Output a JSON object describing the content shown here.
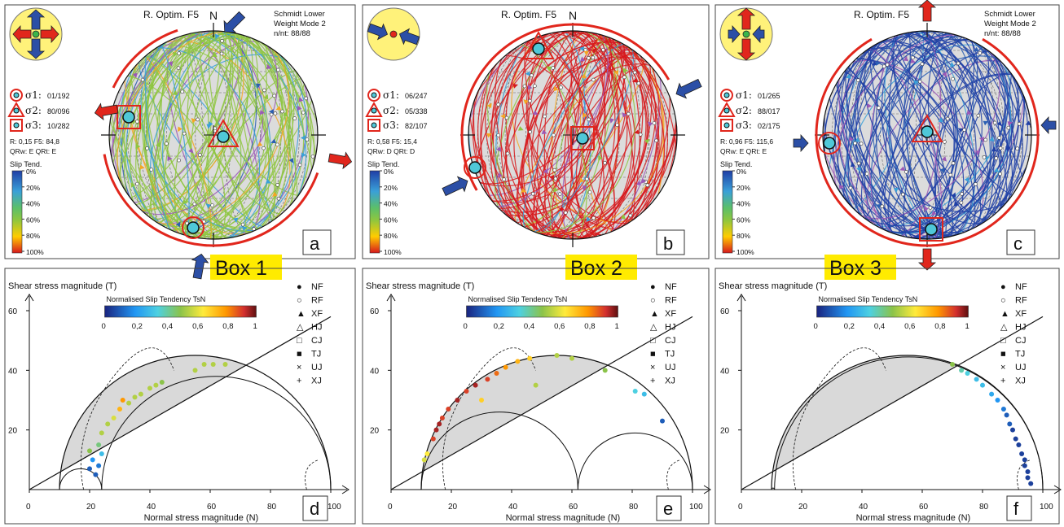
{
  "stereonets": [
    {
      "method": "R. Optim. F5",
      "projection_line1": "Schmidt Lower",
      "projection_line2": "Weight Mode 2",
      "count": "n/nt: 88/88",
      "north": "N",
      "sigma1_label": "σ1:",
      "sigma1_value": "01/192",
      "sigma2_label": "σ2:",
      "sigma2_value": "80/096",
      "sigma3_label": "σ3:",
      "sigma3_value": "10/282",
      "ratio_line": "R: 0,15   F5: 84,8",
      "quality_line": "QRw: E   QRt: E",
      "legend_title": "Slip Tend.",
      "legend_ticks": [
        "0%",
        "20%",
        "40%",
        "60%",
        "80%",
        "100%"
      ],
      "panel_letter": "a",
      "box_label": "Box 1",
      "regime": "strike-slip",
      "dominant_color": "#8ec63f",
      "point_colors": [
        "#8ec63f",
        "#2b5fb3",
        "#f5a623",
        "#9b59b6",
        "#3aa0d8"
      ]
    },
    {
      "method": "R. Optim. F5",
      "projection_line1": "",
      "projection_line2": "",
      "count": "",
      "north": "N",
      "sigma1_label": "σ1:",
      "sigma1_value": "06/247",
      "sigma2_label": "σ2:",
      "sigma2_value": "05/338",
      "sigma3_label": "σ3:",
      "sigma3_value": "82/107",
      "ratio_line": "R: 0,58   F5: 15,4",
      "quality_line": "QRw: D   QRt: D",
      "legend_title": "Slip Tend.",
      "legend_ticks": [
        "0%",
        "20%",
        "40%",
        "60%",
        "80%",
        "100%"
      ],
      "panel_letter": "b",
      "box_label": "Box 2",
      "regime": "compression",
      "dominant_color": "#d7191c",
      "point_colors": [
        "#d7191c",
        "#f5a623",
        "#8ec63f",
        "#9b59b6",
        "#3aa0d8"
      ]
    },
    {
      "method": "R. Optim. F5",
      "projection_line1": "Schmidt Lower",
      "projection_line2": "Weight Mode 2",
      "count": "n/nt: 88/88",
      "north": "",
      "sigma1_label": "σ1:",
      "sigma1_value": "01/265",
      "sigma2_label": "σ2:",
      "sigma2_value": "88/017",
      "sigma3_label": "σ3:",
      "sigma3_value": "02/175",
      "ratio_line": "R: 0,96   F5: 115,6",
      "quality_line": "QRw: E   QRt: E",
      "legend_title": "Slip Tend.",
      "legend_ticks": [
        "0%",
        "20%",
        "40%",
        "60%",
        "80%",
        "100%"
      ],
      "panel_letter": "c",
      "box_label": "Box 3",
      "regime": "extension",
      "dominant_color": "#1f3fa6",
      "point_colors": [
        "#2b5fb3",
        "#1f3fa6",
        "#3aa0d8",
        "#9b59b6"
      ]
    }
  ],
  "mohr_panels": [
    {
      "panel_letter": "d",
      "y_axis_title": "Shear stress magnitude (T)",
      "x_axis_title": "Normal stress magnitude (N)",
      "y_ticks": [
        "20",
        "40",
        "60"
      ],
      "x_ticks": [
        "0",
        "20",
        "40",
        "60",
        "80",
        "100"
      ],
      "colorbar_title": "Normalised Slip Tendency TsN",
      "colorbar_ticks": [
        "0",
        "0,2",
        "0,4",
        "0,6",
        "0,8",
        "1"
      ]
    },
    {
      "panel_letter": "e",
      "y_axis_title": "Shear stress magnitude (T)",
      "x_axis_title": "Normal stress magnitude (N)",
      "y_ticks": [
        "20",
        "40",
        "60"
      ],
      "x_ticks": [
        "0",
        "20",
        "40",
        "60",
        "80",
        "100"
      ],
      "colorbar_title": "Normalised Slip Tendency TsN",
      "colorbar_ticks": [
        "0",
        "0,2",
        "0,4",
        "0,6",
        "0,8",
        "1"
      ]
    },
    {
      "panel_letter": "f",
      "y_axis_title": "Shear stress magnitude (T)",
      "x_axis_title": "Normal stress magnitude (N)",
      "y_ticks": [
        "20",
        "40",
        "60"
      ],
      "x_ticks": [
        "0",
        "20",
        "40",
        "60",
        "80",
        "100"
      ],
      "colorbar_title": "Normalised Slip Tendency TsN",
      "colorbar_ticks": [
        "0",
        "0,2",
        "0,4",
        "0,6",
        "0,8",
        "1"
      ]
    }
  ],
  "symbol_legend": [
    {
      "symbol": "●",
      "label": "NF"
    },
    {
      "symbol": "○",
      "label": "RF"
    },
    {
      "symbol": "▲",
      "label": "XF"
    },
    {
      "symbol": "△",
      "label": "HJ"
    },
    {
      "symbol": "□",
      "label": "CJ"
    },
    {
      "symbol": "■",
      "label": "TJ"
    },
    {
      "symbol": "×",
      "label": "UJ"
    },
    {
      "symbol": "+",
      "label": "XJ"
    }
  ],
  "chart_data": [
    {
      "type": "scatter",
      "title": "",
      "xlabel": "Normal stress magnitude (N)",
      "ylabel": "Shear stress magnitude (T)",
      "xlim": [
        0,
        100
      ],
      "ylim": [
        0,
        60
      ],
      "circles": [
        [
          10,
          100
        ],
        [
          10,
          24
        ],
        [
          24,
          100
        ]
      ],
      "line": {
        "x": [
          0,
          100
        ],
        "y": [
          0,
          58
        ]
      },
      "points": [
        {
          "x": 22,
          "y": 5,
          "t": 0.1
        },
        {
          "x": 20,
          "y": 7,
          "t": 0.1
        },
        {
          "x": 23,
          "y": 8,
          "t": 0.15
        },
        {
          "x": 21,
          "y": 10,
          "t": 0.2
        },
        {
          "x": 24,
          "y": 12,
          "t": 0.3
        },
        {
          "x": 20,
          "y": 13,
          "t": 0.5
        },
        {
          "x": 23,
          "y": 15,
          "t": 0.45
        },
        {
          "x": 24,
          "y": 19,
          "t": 0.55
        },
        {
          "x": 26,
          "y": 22,
          "t": 0.55
        },
        {
          "x": 28,
          "y": 24,
          "t": 0.6
        },
        {
          "x": 30,
          "y": 27,
          "t": 0.75
        },
        {
          "x": 31,
          "y": 30,
          "t": 0.8
        },
        {
          "x": 33,
          "y": 29,
          "t": 0.55
        },
        {
          "x": 35,
          "y": 31,
          "t": 0.55
        },
        {
          "x": 37,
          "y": 32,
          "t": 0.55
        },
        {
          "x": 40,
          "y": 34,
          "t": 0.55
        },
        {
          "x": 42,
          "y": 35,
          "t": 0.55
        },
        {
          "x": 44,
          "y": 36,
          "t": 0.5
        },
        {
          "x": 55,
          "y": 40,
          "t": 0.55
        },
        {
          "x": 58,
          "y": 42,
          "t": 0.55
        },
        {
          "x": 61,
          "y": 42,
          "t": 0.55
        },
        {
          "x": 65,
          "y": 42,
          "t": 0.55
        }
      ]
    },
    {
      "type": "scatter",
      "title": "",
      "xlabel": "Normal stress magnitude (N)",
      "ylabel": "Shear stress magnitude (T)",
      "xlim": [
        0,
        100
      ],
      "ylim": [
        0,
        60
      ],
      "circles": [
        [
          10,
          100
        ],
        [
          10,
          62
        ],
        [
          62,
          100
        ]
      ],
      "line": {
        "x": [
          0,
          100
        ],
        "y": [
          0,
          58
        ]
      },
      "points": [
        {
          "x": 11,
          "y": 10,
          "t": 0.6
        },
        {
          "x": 12,
          "y": 12,
          "t": 0.65
        },
        {
          "x": 14,
          "y": 17,
          "t": 0.9
        },
        {
          "x": 15,
          "y": 20,
          "t": 0.95
        },
        {
          "x": 16,
          "y": 22,
          "t": 0.95
        },
        {
          "x": 17,
          "y": 24,
          "t": 0.9
        },
        {
          "x": 19,
          "y": 27,
          "t": 0.9
        },
        {
          "x": 22,
          "y": 30,
          "t": 0.95
        },
        {
          "x": 25,
          "y": 33,
          "t": 0.9
        },
        {
          "x": 28,
          "y": 35,
          "t": 0.95
        },
        {
          "x": 30,
          "y": 30,
          "t": 0.7
        },
        {
          "x": 32,
          "y": 37,
          "t": 0.9
        },
        {
          "x": 35,
          "y": 39,
          "t": 0.85
        },
        {
          "x": 38,
          "y": 41,
          "t": 0.8
        },
        {
          "x": 42,
          "y": 43,
          "t": 0.75
        },
        {
          "x": 46,
          "y": 44,
          "t": 0.7
        },
        {
          "x": 48,
          "y": 35,
          "t": 0.55
        },
        {
          "x": 55,
          "y": 45,
          "t": 0.55
        },
        {
          "x": 60,
          "y": 44,
          "t": 0.55
        },
        {
          "x": 71,
          "y": 40,
          "t": 0.5
        },
        {
          "x": 81,
          "y": 33,
          "t": 0.35
        },
        {
          "x": 84,
          "y": 32,
          "t": 0.3
        },
        {
          "x": 90,
          "y": 23,
          "t": 0.1
        }
      ]
    },
    {
      "type": "scatter",
      "title": "",
      "xlabel": "Normal stress magnitude (N)",
      "ylabel": "Shear stress magnitude (T)",
      "xlim": [
        0,
        100
      ],
      "ylim": [
        0,
        60
      ],
      "circles": [
        [
          10,
          100
        ],
        [
          10,
          11
        ],
        [
          11,
          100
        ]
      ],
      "line": {
        "x": [
          0,
          100
        ],
        "y": [
          0,
          58
        ]
      },
      "points": [
        {
          "x": 70,
          "y": 42,
          "t": 0.5
        },
        {
          "x": 73,
          "y": 40,
          "t": 0.4
        },
        {
          "x": 75,
          "y": 39,
          "t": 0.35
        },
        {
          "x": 78,
          "y": 37,
          "t": 0.3
        },
        {
          "x": 80,
          "y": 35,
          "t": 0.3
        },
        {
          "x": 83,
          "y": 32,
          "t": 0.25
        },
        {
          "x": 85,
          "y": 30,
          "t": 0.2
        },
        {
          "x": 87,
          "y": 27,
          "t": 0.15
        },
        {
          "x": 88,
          "y": 25,
          "t": 0.1
        },
        {
          "x": 89,
          "y": 22,
          "t": 0.1
        },
        {
          "x": 90,
          "y": 20,
          "t": 0.05
        },
        {
          "x": 91,
          "y": 17,
          "t": 0.05
        },
        {
          "x": 92,
          "y": 15,
          "t": 0.05
        },
        {
          "x": 93,
          "y": 12,
          "t": 0.05
        },
        {
          "x": 94,
          "y": 10,
          "t": 0.05
        },
        {
          "x": 94,
          "y": 8,
          "t": 0.05
        },
        {
          "x": 95,
          "y": 6,
          "t": 0.05
        },
        {
          "x": 95,
          "y": 4,
          "t": 0.05
        },
        {
          "x": 96,
          "y": 2,
          "t": 0.05
        }
      ]
    }
  ]
}
